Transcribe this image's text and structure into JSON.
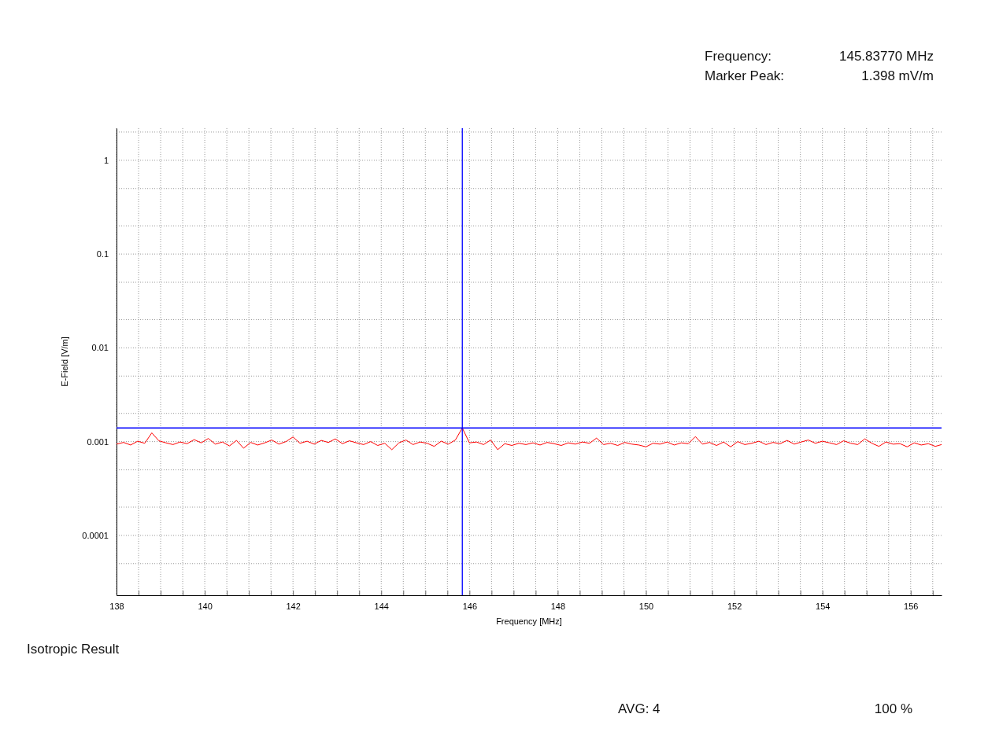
{
  "chart_data": {
    "type": "line",
    "xlabel": "Frequency [MHz]",
    "ylabel": "E-Field [V/m]",
    "log": "y",
    "grid": true,
    "marker": "none",
    "line_style": "solid",
    "xlim": [
      138,
      156.7
    ],
    "ylim": [
      2.3e-05,
      2.2
    ],
    "xticks": [
      138,
      {
        "value": 138.5,
        "label": null
      },
      {
        "value": 139,
        "label": null
      },
      {
        "value": 139.5,
        "label": null
      },
      140,
      {
        "value": 140.5,
        "label": null
      },
      {
        "value": 141,
        "label": null
      },
      {
        "value": 141.5,
        "label": null
      },
      142,
      {
        "value": 142.5,
        "label": null
      },
      {
        "value": 143,
        "label": null
      },
      {
        "value": 143.5,
        "label": null
      },
      144,
      {
        "value": 144.5,
        "label": null
      },
      {
        "value": 145,
        "label": null
      },
      {
        "value": 145.5,
        "label": null
      },
      146,
      {
        "value": 146.5,
        "label": null
      },
      {
        "value": 147,
        "label": null
      },
      {
        "value": 147.5,
        "label": null
      },
      148,
      {
        "value": 148.5,
        "label": null
      },
      {
        "value": 149,
        "label": null
      },
      {
        "value": 149.5,
        "label": null
      },
      150,
      {
        "value": 150.5,
        "label": null
      },
      {
        "value": 151,
        "label": null
      },
      {
        "value": 151.5,
        "label": null
      },
      152,
      {
        "value": 152.5,
        "label": null
      },
      {
        "value": 153,
        "label": null
      },
      {
        "value": 153.5,
        "label": null
      },
      154,
      {
        "value": 154.5,
        "label": null
      },
      {
        "value": 155,
        "label": null
      },
      {
        "value": 155.5,
        "label": null
      },
      156,
      {
        "value": 156.5,
        "label": null
      }
    ],
    "yticks": [
      {
        "value": 5e-05,
        "label": null
      },
      0.0001,
      {
        "value": 0.0002,
        "label": null
      },
      {
        "value": 0.0005,
        "label": null
      },
      0.001,
      {
        "value": 0.002,
        "label": null
      },
      {
        "value": 0.005,
        "label": null
      },
      0.01,
      {
        "value": 0.02,
        "label": null
      },
      {
        "value": 0.05,
        "label": null
      },
      0.1,
      {
        "value": 0.2,
        "label": null
      },
      {
        "value": 0.5,
        "label": null
      },
      1,
      {
        "value": 2,
        "label": null
      }
    ],
    "ref_lines": [
      {
        "axis": "x",
        "value": 145.8377,
        "label": null,
        "color": "#0000ff"
      },
      {
        "axis": "y",
        "value": 0.001398,
        "label": null,
        "color": "#0000ff"
      }
    ],
    "annotations": [
      "Frequency:",
      "145.83770 MHz",
      "Marker Peak:",
      "1.398 mV/m",
      "Isotropic Result",
      "AVG: 4",
      "100 %"
    ],
    "series": [
      {
        "color": "#ff0000",
        "x": [
          138.0,
          138.16,
          138.32,
          138.48,
          138.64,
          138.8,
          138.96,
          139.12,
          139.28,
          139.44,
          139.6,
          139.76,
          139.92,
          140.08,
          140.24,
          140.4,
          140.56,
          140.72,
          140.88,
          141.04,
          141.2,
          141.36,
          141.52,
          141.68,
          141.84,
          142.0,
          142.16,
          142.32,
          142.48,
          142.64,
          142.8,
          142.96,
          143.12,
          143.28,
          143.44,
          143.6,
          143.76,
          143.92,
          144.08,
          144.24,
          144.4,
          144.56,
          144.72,
          144.88,
          145.04,
          145.2,
          145.36,
          145.52,
          145.68,
          145.8377,
          146.0,
          146.16,
          146.32,
          146.48,
          146.64,
          146.8,
          146.96,
          147.12,
          147.28,
          147.44,
          147.6,
          147.76,
          147.92,
          148.08,
          148.24,
          148.4,
          148.56,
          148.72,
          148.88,
          149.04,
          149.2,
          149.36,
          149.52,
          149.68,
          149.84,
          150.0,
          150.16,
          150.32,
          150.48,
          150.64,
          150.8,
          150.96,
          151.12,
          151.28,
          151.44,
          151.6,
          151.76,
          151.92,
          152.08,
          152.24,
          152.4,
          152.56,
          152.72,
          152.88,
          153.04,
          153.2,
          153.36,
          153.52,
          153.68,
          153.84,
          154.0,
          154.16,
          154.32,
          154.48,
          154.64,
          154.8,
          154.96,
          155.12,
          155.28,
          155.44,
          155.6,
          155.76,
          155.92,
          156.08,
          156.24,
          156.4,
          156.56,
          156.7
        ],
        "values": [
          0.00094,
          0.00098,
          0.00092,
          0.00101,
          0.00096,
          0.00124,
          0.00102,
          0.00097,
          0.00093,
          0.00099,
          0.00095,
          0.00105,
          0.00097,
          0.00108,
          0.00094,
          0.00099,
          0.0009,
          0.00103,
          0.00085,
          0.00098,
          0.00092,
          0.00097,
          0.00104,
          0.00094,
          0.001,
          0.00112,
          0.00096,
          0.00101,
          0.00094,
          0.00103,
          0.00098,
          0.00107,
          0.00095,
          0.00102,
          0.00097,
          0.00093,
          0.001,
          0.00091,
          0.00096,
          0.00082,
          0.00097,
          0.00104,
          0.00093,
          0.00099,
          0.00096,
          0.00089,
          0.00101,
          0.00094,
          0.00104,
          0.001398,
          0.00097,
          0.00099,
          0.00093,
          0.00104,
          0.00082,
          0.00095,
          0.00091,
          0.00096,
          0.00093,
          0.00097,
          0.00092,
          0.00098,
          0.00095,
          0.00091,
          0.00097,
          0.00094,
          0.00099,
          0.00096,
          0.00109,
          0.00093,
          0.00096,
          0.00091,
          0.00098,
          0.00094,
          0.00092,
          0.00088,
          0.00096,
          0.00094,
          0.00099,
          0.00092,
          0.00097,
          0.00095,
          0.00113,
          0.00094,
          0.00098,
          0.00091,
          0.00099,
          0.00088,
          0.001,
          0.00093,
          0.00096,
          0.00101,
          0.00093,
          0.00098,
          0.00095,
          0.00103,
          0.00094,
          0.00099,
          0.00104,
          0.00096,
          0.00101,
          0.00097,
          0.00093,
          0.00102,
          0.00096,
          0.00093,
          0.00107,
          0.00096,
          0.00089,
          0.00099,
          0.00094,
          0.00095,
          0.00088,
          0.00097,
          0.00092,
          0.00095,
          0.00089,
          0.00093
        ]
      }
    ]
  }
}
